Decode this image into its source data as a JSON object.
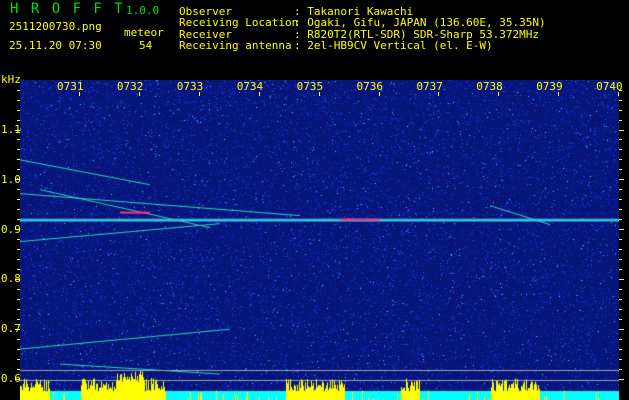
{
  "header": {
    "app_name": "H R O F F T",
    "version": "1.0.0",
    "filename": "2511200730.png",
    "datetime": "25.11.20 07:30",
    "meteor_label": "meteor",
    "meteor_count": "54",
    "info": [
      {
        "label": "Observer",
        "value": ": Takanori Kawachi"
      },
      {
        "label": "Receiving Location",
        "value": ": Ogaki, Gifu, JAPAN (136.60E, 35.35N)"
      },
      {
        "label": "Receiver",
        "value": ": R820T2(RTL-SDR) SDR-Sharp 53.372MHz"
      },
      {
        "label": "Receiving antenna",
        "value": ": 2el-HB9CV Vertical (el. E-W)"
      }
    ]
  },
  "colors": {
    "text": "#ffff00",
    "title": "#00e000",
    "background_noise": "#0a1a9a",
    "level_bar": "#ffff00",
    "level_base": "#00ffff"
  },
  "chart_data": {
    "type": "heatmap",
    "ylabel": "kHz",
    "x_ticks": [
      "0731",
      "0732",
      "0733",
      "0734",
      "0735",
      "0736",
      "0737",
      "0738",
      "0739",
      "0740"
    ],
    "y_ticks": [
      "1.1",
      "1.0",
      "0.9",
      "0.8",
      "0.7",
      "0.6"
    ],
    "ylim": [
      0.58,
      1.2
    ],
    "carrier_khz": 0.92
  }
}
